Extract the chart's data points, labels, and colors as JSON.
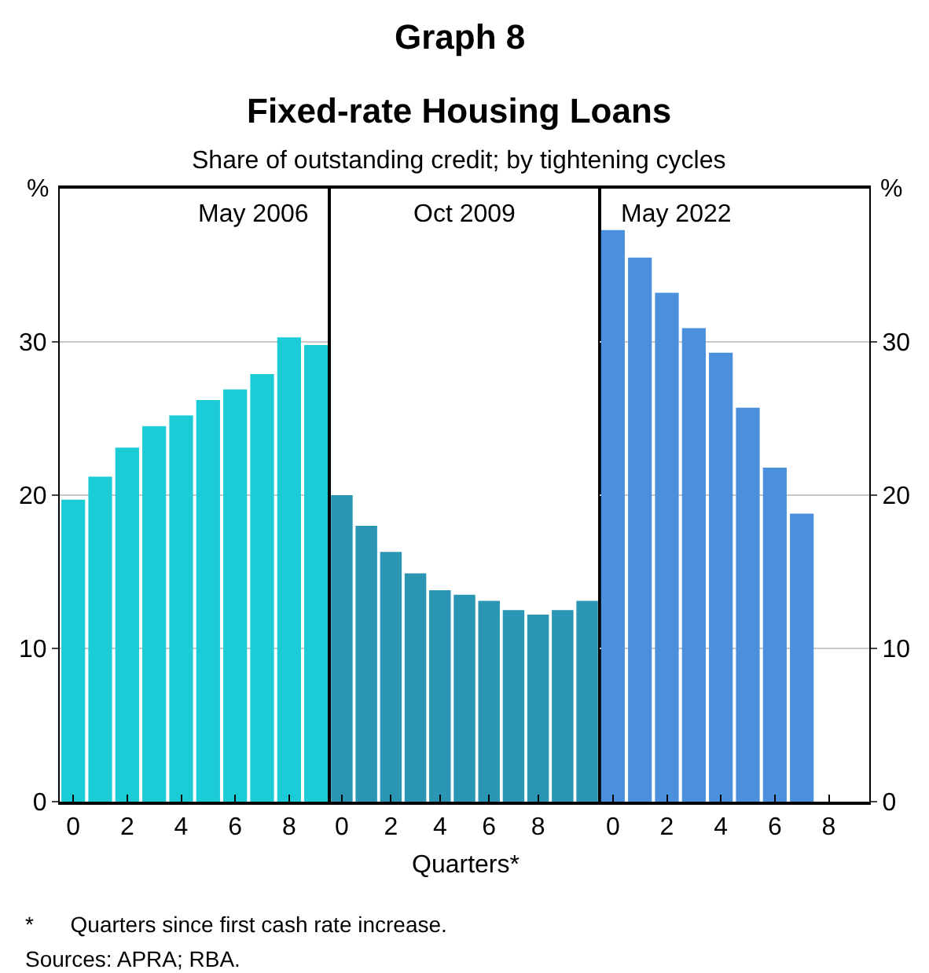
{
  "chart_data": [
    {
      "type": "bar",
      "title": "May 2006",
      "ylabel": "%",
      "x": [
        0,
        1,
        2,
        3,
        4,
        5,
        6,
        7,
        8,
        9
      ],
      "xlim": [
        -0.5,
        9.5
      ],
      "xticks": [
        0,
        2,
        4,
        6,
        8
      ],
      "ylim": [
        0,
        40
      ],
      "yticks": [
        0,
        10,
        20,
        30
      ],
      "grid": "y",
      "series": [
        {
          "color": "#1bccd6",
          "values": [
            19.7,
            21.2,
            23.1,
            24.5,
            25.2,
            26.2,
            26.9,
            27.9,
            30.3,
            29.8
          ]
        }
      ],
      "annotations": [
        "Graph 8",
        "Fixed-rate Housing Loans",
        "Share of outstanding credit; by tightening cycles",
        "*      Quarters since first cash rate increase.",
        "Sources: APRA; RBA."
      ]
    },
    {
      "type": "bar",
      "title": "Oct 2009",
      "xlabel": "Quarters*",
      "x": [
        0,
        1,
        2,
        3,
        4,
        5,
        6,
        7,
        8,
        9,
        10
      ],
      "xlim": [
        -0.5,
        10.5
      ],
      "xticks": [
        0,
        2,
        4,
        6,
        8
      ],
      "ylim": [
        0,
        40
      ],
      "grid": "y",
      "tick_labels": "x",
      "series": [
        {
          "color": "#2a96b4",
          "values": [
            20.0,
            18.0,
            16.3,
            14.9,
            13.8,
            13.5,
            13.1,
            12.5,
            12.2,
            12.5,
            13.1
          ]
        }
      ]
    },
    {
      "type": "bar",
      "title": "May 2022",
      "y2label": "%",
      "x": [
        0,
        1,
        2,
        3,
        4,
        5,
        6,
        7
      ],
      "xlim": [
        -0.5,
        9.5
      ],
      "xticks": [
        0,
        2,
        4,
        6,
        8
      ],
      "y2lim": [
        0,
        40
      ],
      "y2ticks": [
        0,
        10,
        20,
        30
      ],
      "grid": "y",
      "series": [
        {
          "color": "#4a90dc",
          "axis": "y2",
          "values": [
            37.3,
            35.5,
            33.2,
            30.9,
            29.3,
            25.7,
            21.8,
            18.8
          ]
        }
      ]
    }
  ]
}
